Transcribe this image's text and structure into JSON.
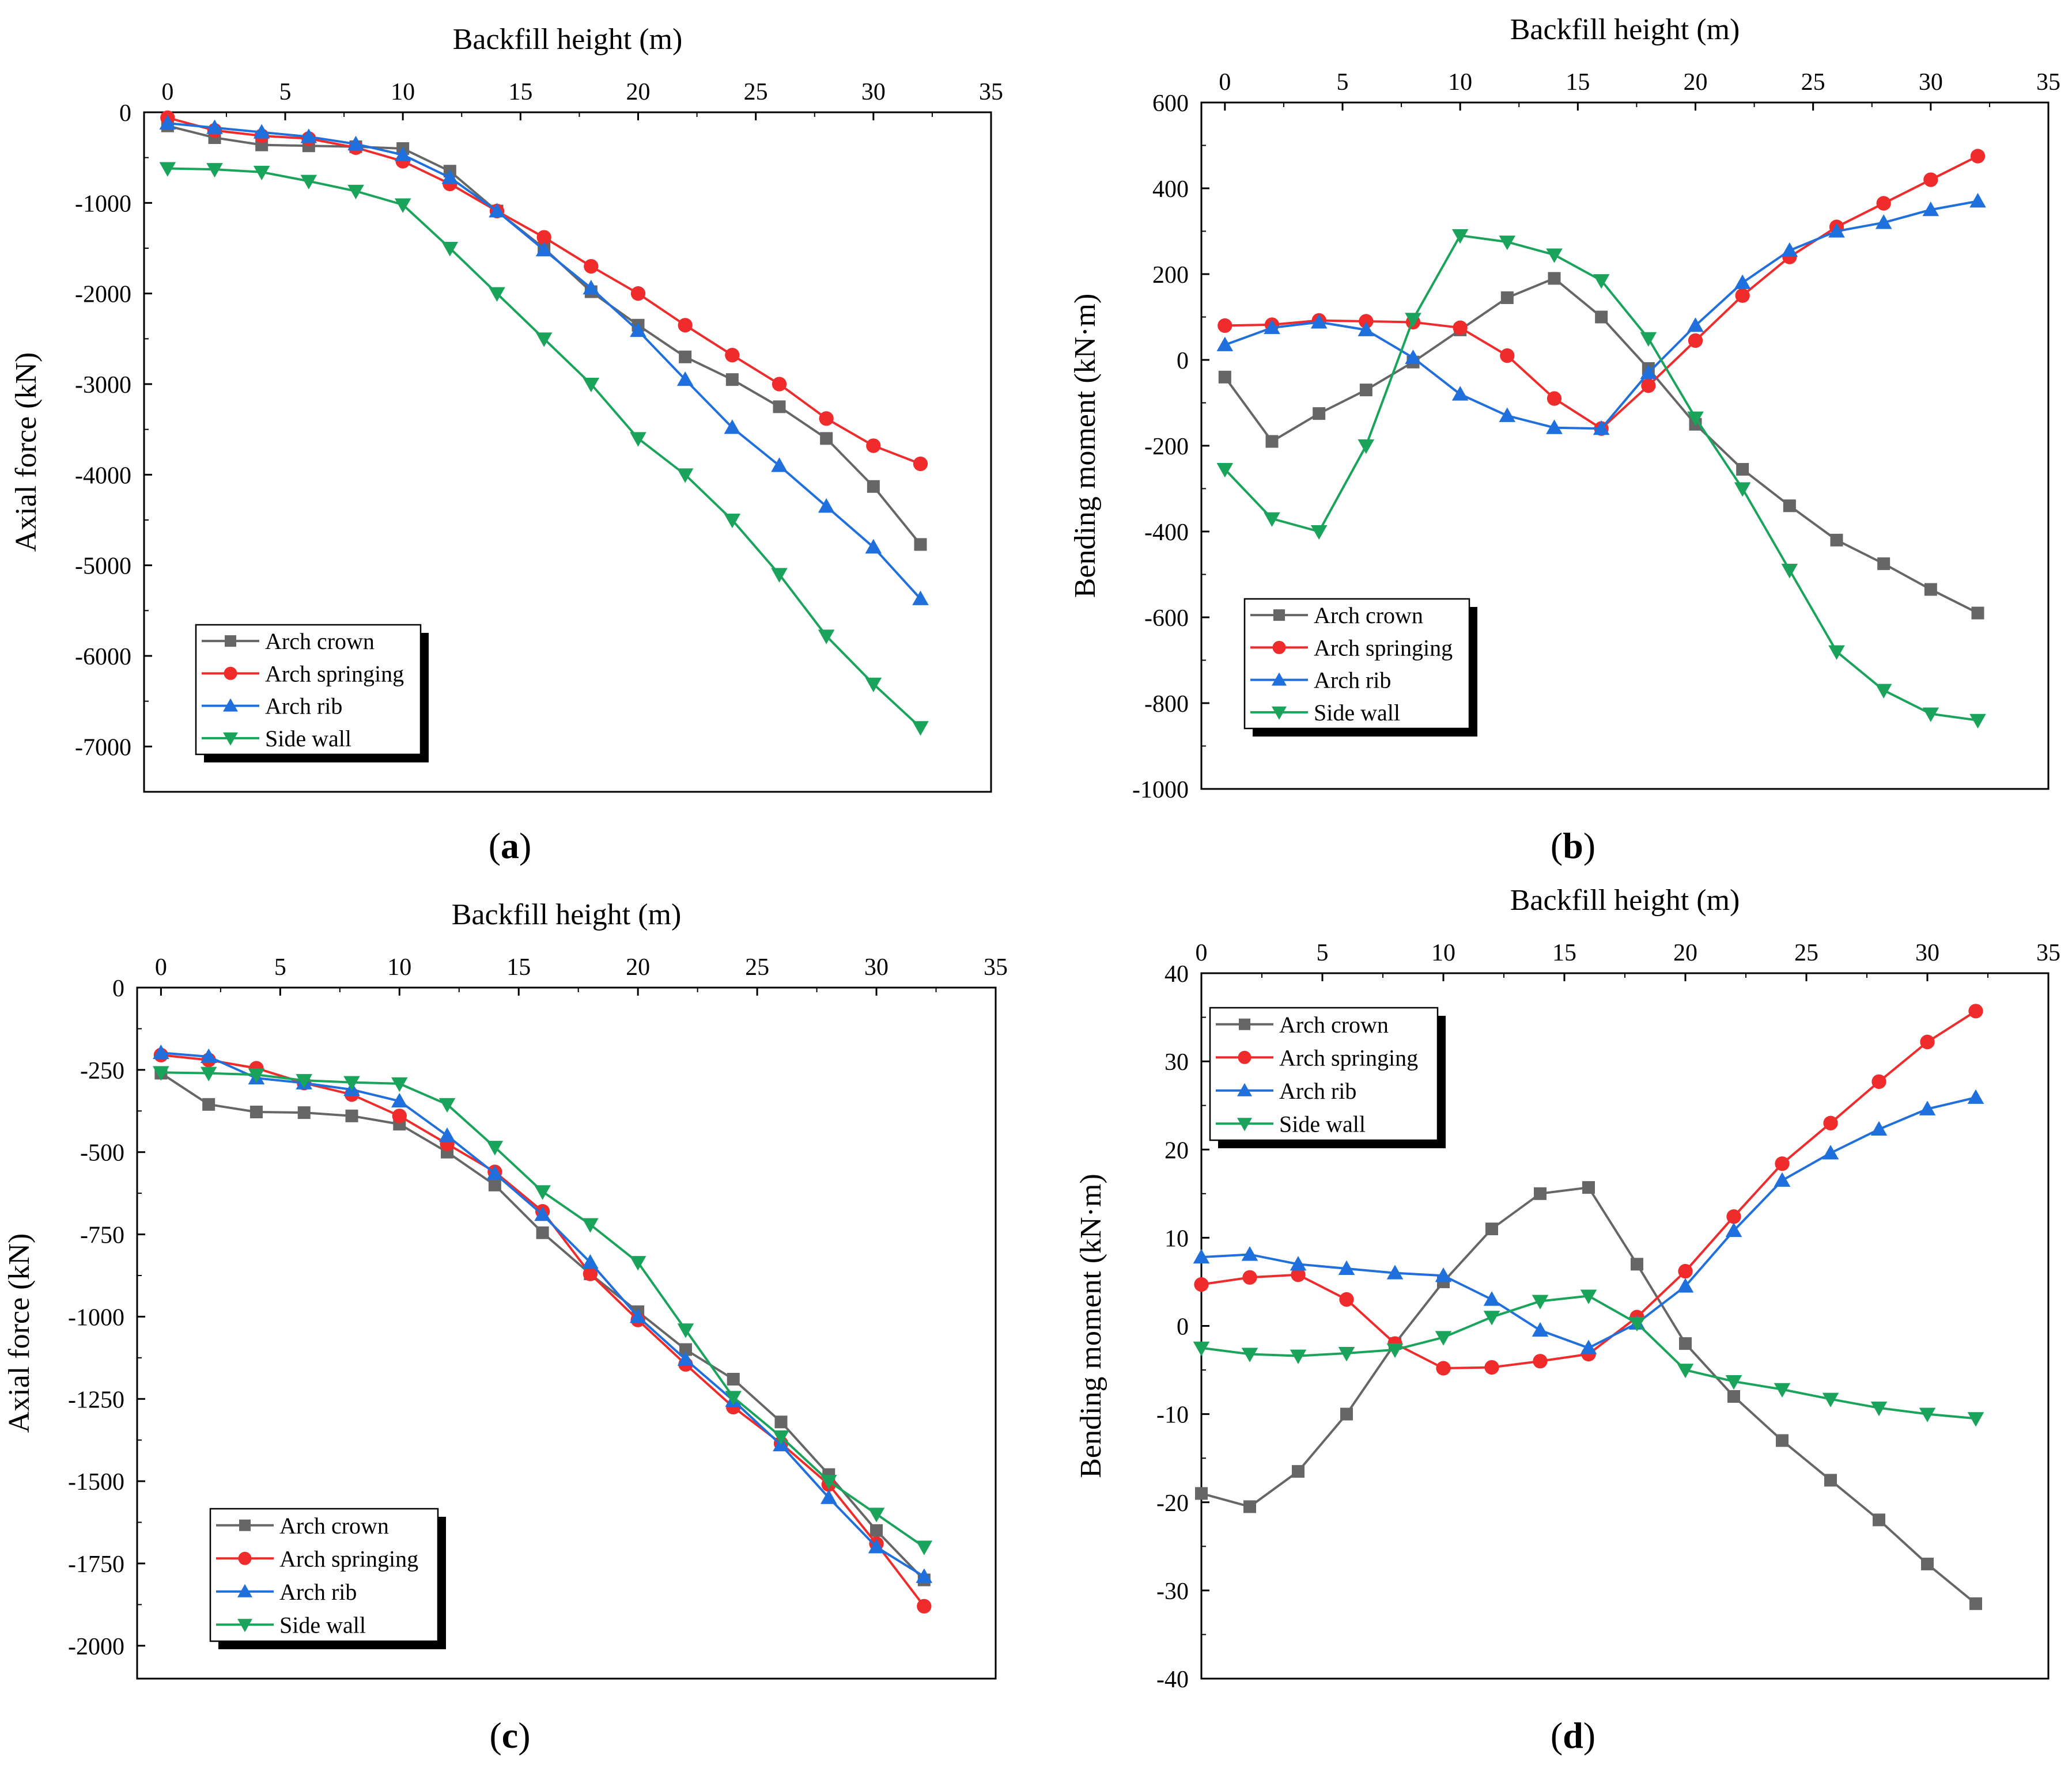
{
  "figure": {
    "colors": {
      "arch_crown": "#666666",
      "arch_springing": "#ef2b2b",
      "arch_rib": "#1f6fdc",
      "side_wall": "#1aa35a"
    }
  },
  "chart_data": [
    {
      "type": "line",
      "panel_label": "a",
      "title": "",
      "xlabel": "Backfill height (m)",
      "ylabel": "Axial force (kN)",
      "xlim": [
        -1,
        35
      ],
      "ylim": [
        -7500,
        0
      ],
      "xticks": [
        0,
        5,
        10,
        15,
        20,
        25,
        30,
        35
      ],
      "yticks": [
        0,
        -1000,
        -2000,
        -3000,
        -4000,
        -5000,
        -6000,
        -7000
      ],
      "grid": false,
      "legend_position": "bottom-left",
      "x": [
        0,
        2,
        4,
        6,
        8,
        10,
        12,
        14,
        16,
        18,
        20,
        22,
        24,
        26,
        28,
        30,
        32
      ],
      "series": [
        {
          "name": "Arch crown",
          "marker": "square",
          "values": [
            -150,
            -280,
            -360,
            -370,
            -380,
            -400,
            -650,
            -1090,
            -1500,
            -1980,
            -2350,
            -2700,
            -2950,
            -3250,
            -3600,
            -4130,
            -4770
          ]
        },
        {
          "name": "Arch springing",
          "marker": "circle",
          "values": [
            -60,
            -200,
            -260,
            -290,
            -390,
            -540,
            -790,
            -1090,
            -1380,
            -1700,
            -2000,
            -2350,
            -2680,
            -3000,
            -3380,
            -3680,
            -3880
          ]
        },
        {
          "name": "Arch rib",
          "marker": "triangle-up",
          "values": [
            -120,
            -170,
            -220,
            -270,
            -350,
            -470,
            -720,
            -1090,
            -1520,
            -1940,
            -2410,
            -2950,
            -3480,
            -3900,
            -4350,
            -4800,
            -5370
          ]
        },
        {
          "name": "Side wall",
          "marker": "triangle-down",
          "values": [
            -620,
            -630,
            -660,
            -760,
            -870,
            -1020,
            -1500,
            -2000,
            -2500,
            -3000,
            -3600,
            -4000,
            -4500,
            -5100,
            -5780,
            -6310,
            -6790
          ]
        }
      ]
    },
    {
      "type": "line",
      "panel_label": "b",
      "title": "",
      "xlabel": "Backfill height (m)",
      "ylabel": "Bending moment (kN·m)",
      "xlim": [
        -1,
        35
      ],
      "ylim": [
        -1000,
        600
      ],
      "xticks": [
        0,
        5,
        10,
        15,
        20,
        25,
        30,
        35
      ],
      "yticks": [
        600,
        400,
        200,
        0,
        -200,
        -400,
        -600,
        -800,
        -1000
      ],
      "grid": false,
      "legend_position": "bottom-left",
      "x": [
        0,
        2,
        4,
        6,
        8,
        10,
        12,
        14,
        16,
        18,
        20,
        22,
        24,
        26,
        28,
        30,
        32
      ],
      "series": [
        {
          "name": "Arch crown",
          "marker": "square",
          "values": [
            -40,
            -190,
            -125,
            -70,
            -5,
            70,
            145,
            190,
            100,
            -20,
            -150,
            -255,
            -340,
            -420,
            -475,
            -535,
            -590
          ]
        },
        {
          "name": "Arch springing",
          "marker": "circle",
          "values": [
            80,
            82,
            92,
            90,
            88,
            75,
            10,
            -90,
            -160,
            -60,
            45,
            150,
            240,
            310,
            365,
            420,
            475
          ]
        },
        {
          "name": "Arch rib",
          "marker": "triangle-up",
          "values": [
            35,
            75,
            88,
            70,
            5,
            -80,
            -130,
            -158,
            -160,
            -30,
            80,
            180,
            255,
            300,
            320,
            350,
            370
          ]
        },
        {
          "name": "Side wall",
          "marker": "triangle-down",
          "values": [
            -255,
            -370,
            -400,
            -200,
            95,
            290,
            275,
            245,
            185,
            50,
            -135,
            -300,
            -490,
            -680,
            -770,
            -825,
            -840
          ]
        }
      ]
    },
    {
      "type": "line",
      "panel_label": "c",
      "title": "",
      "xlabel": "Backfill height (m)",
      "ylabel": "Axial force (kN)",
      "xlim": [
        -1,
        35
      ],
      "ylim": [
        -2100,
        0
      ],
      "xticks": [
        0,
        5,
        10,
        15,
        20,
        25,
        30,
        35
      ],
      "yticks": [
        0,
        -250,
        -500,
        -750,
        -1000,
        -1250,
        -1500,
        -1750,
        -2000
      ],
      "grid": false,
      "legend_position": "bottom-left",
      "x": [
        0,
        2,
        4,
        6,
        8,
        10,
        12,
        14,
        16,
        18,
        20,
        22,
        24,
        26,
        28,
        30,
        32
      ],
      "series": [
        {
          "name": "Arch crown",
          "marker": "square",
          "values": [
            -260,
            -355,
            -378,
            -380,
            -390,
            -415,
            -500,
            -600,
            -745,
            -870,
            -985,
            -1100,
            -1190,
            -1320,
            -1480,
            -1650,
            -1800
          ]
        },
        {
          "name": "Arch springing",
          "marker": "circle",
          "values": [
            -205,
            -220,
            -245,
            -290,
            -325,
            -390,
            -475,
            -560,
            -680,
            -870,
            -1010,
            -1145,
            -1275,
            -1385,
            -1510,
            -1690,
            -1880
          ]
        },
        {
          "name": "Arch rib",
          "marker": "triangle-up",
          "values": [
            -198,
            -210,
            -275,
            -290,
            -310,
            -345,
            -450,
            -565,
            -690,
            -835,
            -1000,
            -1130,
            -1255,
            -1390,
            -1550,
            -1700,
            -1790
          ]
        },
        {
          "name": "Side wall",
          "marker": "triangle-down",
          "values": [
            -258,
            -260,
            -265,
            -282,
            -288,
            -292,
            -355,
            -485,
            -620,
            -720,
            -835,
            -1040,
            -1245,
            -1365,
            -1500,
            -1600,
            -1700
          ]
        }
      ]
    },
    {
      "type": "line",
      "panel_label": "d",
      "title": "",
      "xlabel": "Backfill height (m)",
      "ylabel": "Bending moment (kN·m)",
      "xlim": [
        0,
        35
      ],
      "ylim": [
        -40,
        40
      ],
      "xticks": [
        0,
        5,
        10,
        15,
        20,
        25,
        30,
        35
      ],
      "yticks": [
        40,
        30,
        20,
        10,
        0,
        -10,
        -20,
        -30,
        -40
      ],
      "grid": false,
      "legend_position": "top-left",
      "x": [
        0,
        2,
        4,
        6,
        8,
        10,
        12,
        14,
        16,
        18,
        20,
        22,
        24,
        26,
        28,
        30,
        32
      ],
      "series": [
        {
          "name": "Arch crown",
          "marker": "square",
          "values": [
            -19,
            -20.5,
            -16.5,
            -10,
            -2,
            5,
            11,
            15,
            15.7,
            7,
            -2,
            -8,
            -13,
            -17.5,
            -22,
            -27,
            -31.5
          ]
        },
        {
          "name": "Arch springing",
          "marker": "circle",
          "values": [
            4.7,
            5.5,
            5.8,
            3,
            -2,
            -4.8,
            -4.7,
            -4,
            -3.2,
            1,
            6.2,
            12.4,
            18.4,
            23,
            27.7,
            32.2,
            35.7
          ]
        },
        {
          "name": "Arch rib",
          "marker": "triangle-up",
          "values": [
            7.8,
            8.1,
            7,
            6.5,
            6,
            5.7,
            3,
            -0.5,
            -2.5,
            0.3,
            4.5,
            10.8,
            16.5,
            19.6,
            22.3,
            24.6,
            25.9
          ]
        },
        {
          "name": "Side wall",
          "marker": "triangle-down",
          "values": [
            -2.5,
            -3.2,
            -3.4,
            -3.1,
            -2.7,
            -1.3,
            1,
            2.8,
            3.4,
            0.3,
            -5,
            -6.3,
            -7.2,
            -8.3,
            -9.3,
            -10,
            -10.5
          ]
        }
      ]
    }
  ]
}
